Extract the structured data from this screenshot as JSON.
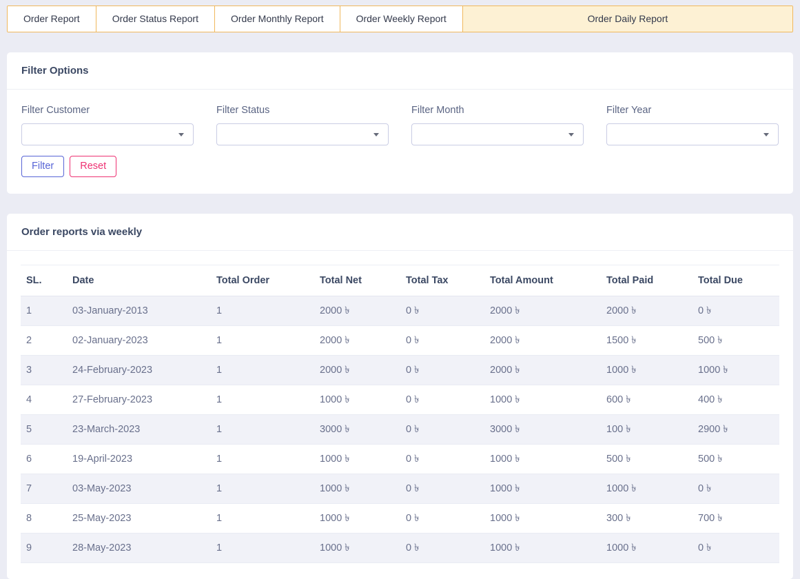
{
  "tabs": [
    {
      "label": "Order Report",
      "active": false
    },
    {
      "label": "Order Status Report",
      "active": false
    },
    {
      "label": "Order Monthly Report",
      "active": false
    },
    {
      "label": "Order Weekly Report",
      "active": false
    },
    {
      "label": "Order Daily Report",
      "active": true
    }
  ],
  "filter_panel": {
    "title": "Filter Options",
    "fields": [
      {
        "label": "Filter Customer",
        "value": "",
        "icon": "chevron-down-icon"
      },
      {
        "label": "Filter Status",
        "value": "",
        "icon": "chevron-down-icon"
      },
      {
        "label": "Filter Month",
        "value": "",
        "icon": "chevron-down-icon"
      },
      {
        "label": "Filter Year",
        "value": "",
        "icon": "chevron-down-icon"
      }
    ],
    "buttons": {
      "filter": "Filter",
      "reset": "Reset"
    }
  },
  "report_table": {
    "title": "Order reports via weekly",
    "currency": "৳",
    "columns": [
      "SL.",
      "Date",
      "Total Order",
      "Total Net",
      "Total Tax",
      "Total Amount",
      "Total Paid",
      "Total Due"
    ],
    "rows": [
      [
        "1",
        "03-January-2013",
        "1",
        "2000 ৳",
        "0 ৳",
        "2000 ৳",
        "2000 ৳",
        "0 ৳"
      ],
      [
        "2",
        "02-January-2023",
        "1",
        "2000 ৳",
        "0 ৳",
        "2000 ৳",
        "1500 ৳",
        "500 ৳"
      ],
      [
        "3",
        "24-February-2023",
        "1",
        "2000 ৳",
        "0 ৳",
        "2000 ৳",
        "1000 ৳",
        "1000 ৳"
      ],
      [
        "4",
        "27-February-2023",
        "1",
        "1000 ৳",
        "0 ৳",
        "1000 ৳",
        "600 ৳",
        "400 ৳"
      ],
      [
        "5",
        "23-March-2023",
        "1",
        "3000 ৳",
        "0 ৳",
        "3000 ৳",
        "100 ৳",
        "2900 ৳"
      ],
      [
        "6",
        "19-April-2023",
        "1",
        "1000 ৳",
        "0 ৳",
        "1000 ৳",
        "500 ৳",
        "500 ৳"
      ],
      [
        "7",
        "03-May-2023",
        "1",
        "1000 ৳",
        "0 ৳",
        "1000 ৳",
        "1000 ৳",
        "0 ৳"
      ],
      [
        "8",
        "25-May-2023",
        "1",
        "1000 ৳",
        "0 ৳",
        "1000 ৳",
        "300 ৳",
        "700 ৳"
      ],
      [
        "9",
        "28-May-2023",
        "1",
        "1000 ৳",
        "0 ৳",
        "1000 ৳",
        "1000 ৳",
        "0 ৳"
      ]
    ]
  },
  "colors": {
    "page_background": "#ebecf4",
    "tab_border": "#f0b85c",
    "active_tab_background": "#fdf1d4",
    "heading_text": "#3b4863",
    "body_text": "#69708c",
    "filter_button": "#5764d6",
    "reset_button": "#ee3172",
    "row_stripe": "#f1f2f8"
  }
}
